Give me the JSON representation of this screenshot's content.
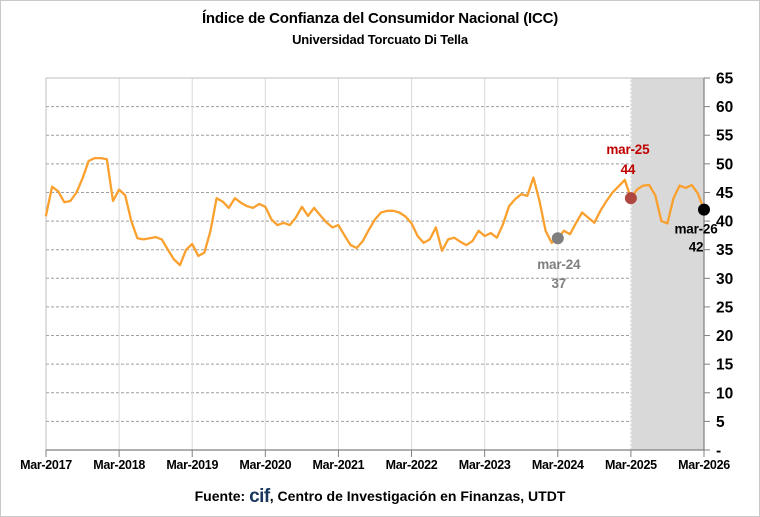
{
  "chart_data": {
    "type": "line",
    "title": "Índice de Confianza del Consumidor Nacional (ICC)",
    "subtitle": "Universidad Torcuato Di Tella",
    "x_unit": "month",
    "x_tick_labels": [
      "Mar-2017",
      "Mar-2018",
      "Mar-2019",
      "Mar-2020",
      "Mar-2021",
      "Mar-2022",
      "Mar-2023",
      "Mar-2024",
      "Mar-2025",
      "Mar-2026"
    ],
    "y_axis": {
      "tick_values": [
        0,
        5,
        10,
        15,
        20,
        25,
        30,
        35,
        40,
        45,
        50,
        55,
        60,
        65
      ],
      "tick_labels": [
        "-",
        "5",
        "10",
        "15",
        "20",
        "25",
        "30",
        "35",
        "40",
        "45",
        "50",
        "55",
        "60",
        "65"
      ]
    },
    "ylim": [
      0,
      65
    ],
    "grid": {
      "horizontal": "dashed",
      "vertical": "solid"
    },
    "series": [
      {
        "color": "#FAA02E",
        "start": "Mar-2017",
        "values": [
          41.0,
          46.0,
          45.2,
          43.3,
          43.5,
          45.0,
          47.5,
          50.5,
          51.0,
          51.0,
          50.8,
          43.5,
          45.5,
          44.5,
          40.0,
          37.0,
          36.8,
          37.0,
          37.2,
          36.8,
          35.0,
          33.3,
          32.3,
          35.0,
          36.0,
          33.9,
          34.5,
          38.3,
          44.0,
          43.4,
          42.3,
          44.0,
          43.2,
          42.6,
          42.3,
          43.0,
          42.5,
          40.3,
          39.3,
          39.7,
          39.3,
          40.6,
          42.5,
          40.9,
          42.3,
          41.0,
          39.8,
          38.9,
          39.3,
          37.5,
          35.8,
          35.3,
          36.5,
          38.5,
          40.3,
          41.5,
          41.8,
          41.8,
          41.5,
          40.8,
          39.6,
          37.4,
          36.2,
          36.8,
          38.9,
          34.8,
          36.8,
          37.1,
          36.4,
          35.8,
          36.5,
          38.3,
          37.4,
          37.9,
          37.1,
          39.4,
          42.6,
          43.8,
          44.7,
          44.4,
          47.6,
          43.5,
          38.3,
          36.2,
          37.0,
          38.3,
          37.7,
          39.7,
          41.5,
          40.6,
          39.7,
          41.8,
          43.5,
          45.0,
          46.1,
          47.2,
          44.0,
          45.5,
          46.2,
          46.3,
          44.5,
          40.0,
          39.6,
          44.0,
          46.2,
          45.8,
          46.3,
          44.8,
          42.0
        ]
      }
    ],
    "shaded_region": {
      "from_month_index": 96,
      "to_month_index": 108,
      "fill": "#D9D9D9"
    },
    "annotations": [
      {
        "label": "mar-24",
        "value_label": "37",
        "month_index": 84,
        "value": 37,
        "text_color": "#7F7F7F",
        "dot_color": "#7F7F7F",
        "position": "below"
      },
      {
        "label": "mar-25",
        "value_label": "44",
        "month_index": 96,
        "value": 44,
        "text_color": "#C00000",
        "dot_color": "#B04640",
        "position": "above"
      },
      {
        "label": "mar-26",
        "value_label": "42",
        "month_index": 108,
        "value": 42,
        "text_color": "#000000",
        "dot_color": "#000000",
        "position": "below-left"
      }
    ],
    "colors": {
      "h_grid": "#9E9E9E",
      "v_grid": "#D9D9D9",
      "plot_border": "#BFBFBF",
      "axis": "#808080"
    }
  },
  "footer": {
    "prefix": "Fuente: ",
    "logo_text": "cif",
    "suffix": ", Centro de Investigación en Finanzas, UTDT"
  }
}
